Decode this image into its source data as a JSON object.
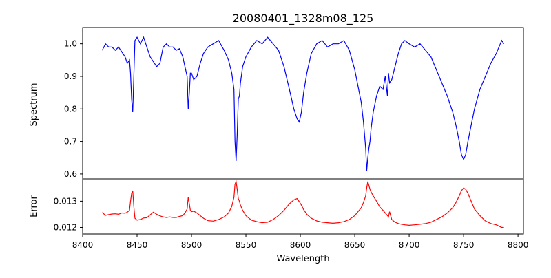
{
  "chart_data": [
    {
      "type": "line",
      "panel": "spectrum",
      "title": "20080401_1328m08_125",
      "xlabel": "",
      "ylabel": "Spectrum",
      "xlim": [
        8400,
        8805
      ],
      "ylim": [
        0.585,
        1.05
      ],
      "yticks": [
        0.6,
        0.7,
        0.8,
        0.9,
        1.0
      ],
      "ytick_labels": [
        "0.6",
        "0.7",
        "0.8",
        "0.9",
        "1.0"
      ],
      "grid": false,
      "color": "#0000ff",
      "series": [
        {
          "x": [
            8418,
            8421,
            8424,
            8427,
            8430,
            8433,
            8436,
            8439,
            8441,
            8443,
            8444,
            8445,
            8446,
            8447,
            8448,
            8450,
            8453,
            8456,
            8459,
            8462,
            8465,
            8468,
            8471,
            8474,
            8477,
            8480,
            8483,
            8486,
            8489,
            8492,
            8494,
            8496,
            8497,
            8498,
            8499,
            8500,
            8502,
            8505,
            8508,
            8511,
            8515,
            8520,
            8525,
            8530,
            8534,
            8537,
            8539,
            8540,
            8541,
            8542,
            8543,
            8544,
            8545,
            8547,
            8550,
            8555,
            8560,
            8565,
            8570,
            8575,
            8580,
            8585,
            8590,
            8594,
            8597,
            8599,
            8601,
            8603,
            8606,
            8610,
            8615,
            8620,
            8625,
            8630,
            8635,
            8640,
            8645,
            8650,
            8653,
            8656,
            8658,
            8660,
            8661,
            8662,
            8663,
            8664,
            8665,
            8667,
            8670,
            8673,
            8676,
            8678,
            8680,
            8681,
            8682,
            8684,
            8687,
            8690,
            8693,
            8696,
            8700,
            8705,
            8710,
            8715,
            8720,
            8725,
            8730,
            8735,
            8740,
            8743,
            8746,
            8748,
            8750,
            8752,
            8754,
            8757,
            8760,
            8765,
            8770,
            8775,
            8780,
            8785,
            8787
          ],
          "y": [
            0.98,
            1.0,
            0.99,
            0.99,
            0.98,
            0.99,
            0.975,
            0.96,
            0.94,
            0.95,
            0.91,
            0.83,
            0.79,
            0.9,
            1.01,
            1.02,
            1.0,
            1.02,
            0.99,
            0.96,
            0.945,
            0.93,
            0.94,
            0.99,
            1.0,
            0.99,
            0.99,
            0.98,
            0.985,
            0.96,
            0.93,
            0.9,
            0.8,
            0.85,
            0.91,
            0.91,
            0.89,
            0.9,
            0.94,
            0.97,
            0.99,
            1.0,
            1.01,
            0.98,
            0.95,
            0.91,
            0.86,
            0.7,
            0.64,
            0.72,
            0.83,
            0.84,
            0.88,
            0.93,
            0.96,
            0.99,
            1.01,
            1.0,
            1.02,
            1.0,
            0.98,
            0.93,
            0.86,
            0.8,
            0.77,
            0.76,
            0.79,
            0.85,
            0.91,
            0.97,
            1.0,
            1.01,
            0.99,
            1.0,
            1.0,
            1.01,
            0.98,
            0.92,
            0.87,
            0.82,
            0.76,
            0.68,
            0.61,
            0.65,
            0.68,
            0.7,
            0.74,
            0.79,
            0.84,
            0.87,
            0.86,
            0.9,
            0.84,
            0.91,
            0.88,
            0.89,
            0.93,
            0.97,
            1.0,
            1.01,
            1.0,
            0.99,
            1.0,
            0.98,
            0.96,
            0.92,
            0.88,
            0.84,
            0.79,
            0.75,
            0.7,
            0.66,
            0.645,
            0.66,
            0.7,
            0.75,
            0.8,
            0.86,
            0.9,
            0.94,
            0.97,
            1.01,
            1.0
          ]
        }
      ]
    },
    {
      "type": "line",
      "panel": "error",
      "title": "",
      "xlabel": "Wavelength",
      "ylabel": "Error",
      "xlim": [
        8400,
        8805
      ],
      "ylim": [
        0.01175,
        0.01385
      ],
      "xticks": [
        8400,
        8450,
        8500,
        8550,
        8600,
        8650,
        8700,
        8750,
        8800
      ],
      "xtick_labels": [
        "8400",
        "8450",
        "8500",
        "8550",
        "8600",
        "8650",
        "8700",
        "8750",
        "8800"
      ],
      "yticks": [
        0.012,
        0.013
      ],
      "ytick_labels": [
        "0.012",
        "0.013"
      ],
      "grid": false,
      "color": "#ff0000",
      "series": [
        {
          "x": [
            8418,
            8421,
            8424,
            8427,
            8430,
            8433,
            8436,
            8439,
            8441,
            8443,
            8444,
            8445,
            8446,
            8447,
            8448,
            8450,
            8453,
            8456,
            8459,
            8462,
            8465,
            8468,
            8471,
            8474,
            8477,
            8480,
            8483,
            8486,
            8489,
            8492,
            8494,
            8496,
            8497,
            8498,
            8499,
            8500,
            8502,
            8505,
            8508,
            8511,
            8515,
            8520,
            8525,
            8530,
            8534,
            8537,
            8539,
            8540,
            8541,
            8542,
            8543,
            8544,
            8545,
            8547,
            8550,
            8555,
            8560,
            8565,
            8570,
            8575,
            8580,
            8585,
            8590,
            8594,
            8597,
            8599,
            8601,
            8603,
            8606,
            8610,
            8615,
            8620,
            8625,
            8630,
            8635,
            8640,
            8645,
            8650,
            8653,
            8656,
            8658,
            8660,
            8661,
            8662,
            8663,
            8664,
            8665,
            8667,
            8670,
            8673,
            8676,
            8678,
            8680,
            8681,
            8682,
            8684,
            8687,
            8690,
            8693,
            8696,
            8700,
            8705,
            8710,
            8715,
            8720,
            8725,
            8730,
            8735,
            8740,
            8743,
            8746,
            8748,
            8750,
            8752,
            8754,
            8757,
            8760,
            8765,
            8770,
            8775,
            8780,
            8785,
            8787
          ],
          "y": [
            0.01257,
            0.01246,
            0.01249,
            0.01251,
            0.01252,
            0.0125,
            0.01255,
            0.01254,
            0.01258,
            0.01265,
            0.013,
            0.0133,
            0.0134,
            0.0128,
            0.01235,
            0.01228,
            0.0123,
            0.01236,
            0.01237,
            0.01248,
            0.01258,
            0.0125,
            0.01244,
            0.0124,
            0.01238,
            0.0124,
            0.01238,
            0.01238,
            0.01242,
            0.01245,
            0.01255,
            0.0127,
            0.01315,
            0.0129,
            0.01265,
            0.0126,
            0.01262,
            0.01255,
            0.01245,
            0.01235,
            0.01226,
            0.01224,
            0.0123,
            0.0124,
            0.01255,
            0.0128,
            0.01315,
            0.01365,
            0.01375,
            0.01345,
            0.0131,
            0.013,
            0.01285,
            0.01265,
            0.01245,
            0.01228,
            0.01222,
            0.01218,
            0.0122,
            0.0123,
            0.01245,
            0.01265,
            0.0129,
            0.01305,
            0.0131,
            0.01298,
            0.01285,
            0.01268,
            0.0125,
            0.01235,
            0.01225,
            0.0122,
            0.01218,
            0.01216,
            0.01218,
            0.01222,
            0.0123,
            0.01245,
            0.0126,
            0.01275,
            0.01295,
            0.0132,
            0.0135,
            0.01375,
            0.0136,
            0.01345,
            0.01335,
            0.0132,
            0.013,
            0.01278,
            0.01265,
            0.01255,
            0.01245,
            0.0124,
            0.0126,
            0.0123,
            0.0122,
            0.01215,
            0.01212,
            0.0121,
            0.01208,
            0.0121,
            0.01212,
            0.01215,
            0.0122,
            0.0123,
            0.0124,
            0.01255,
            0.01275,
            0.01295,
            0.0132,
            0.0134,
            0.0135,
            0.01345,
            0.0133,
            0.013,
            0.0127,
            0.01245,
            0.01225,
            0.01215,
            0.0121,
            0.012,
            0.012
          ]
        }
      ]
    }
  ]
}
